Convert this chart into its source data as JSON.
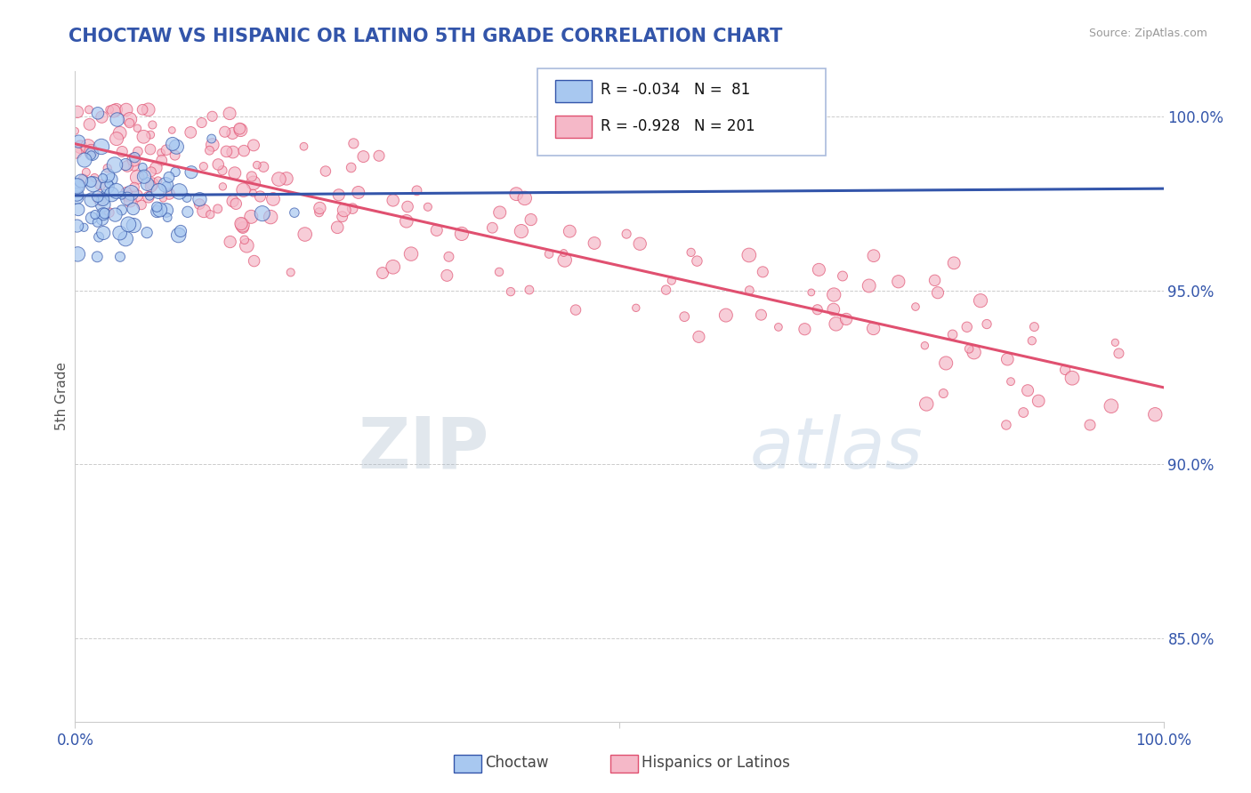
{
  "title": "CHOCTAW VS HISPANIC OR LATINO 5TH GRADE CORRELATION CHART",
  "source": "Source: ZipAtlas.com",
  "ylabel": "5th Grade",
  "legend_label1": "Choctaw",
  "legend_label2": "Hispanics or Latinos",
  "R1": -0.034,
  "N1": 81,
  "R2": -0.928,
  "N2": 201,
  "xmin": 0.0,
  "xmax": 1.0,
  "ymin": 0.826,
  "ymax": 1.013,
  "yticks": [
    0.85,
    0.9,
    0.95,
    1.0
  ],
  "ytick_labels": [
    "85.0%",
    "90.0%",
    "95.0%",
    "100.0%"
  ],
  "color_blue": "#A8C8F0",
  "color_pink": "#F5B8C8",
  "trendline_blue": "#3355AA",
  "trendline_pink": "#E05070",
  "watermark_zip": "ZIP",
  "watermark_atlas": "atlas",
  "background_color": "#FFFFFF",
  "grid_color": "#CCCCCC",
  "title_color": "#3355AA",
  "source_color": "#999999",
  "legend_border_color": "#AABBDD"
}
